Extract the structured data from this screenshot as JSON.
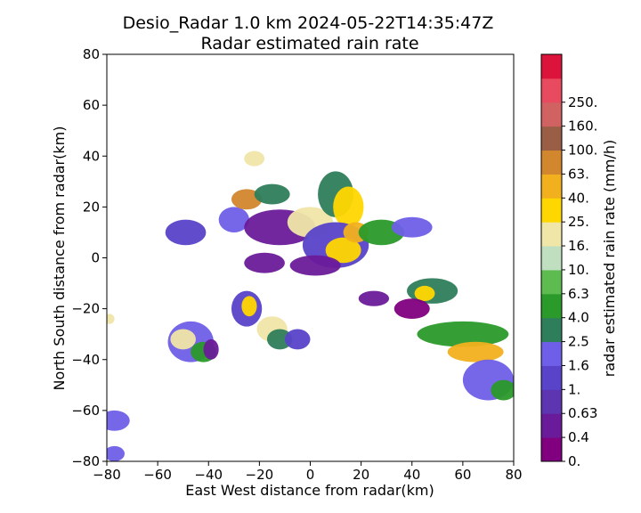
{
  "chart_data": {
    "type": "heatmap",
    "title_line1": "Desio_Radar 1.0 km 2024-05-22T14:35:47Z",
    "title_line2": "Radar estimated rain rate",
    "xlabel": "East West distance from radar(km)",
    "ylabel": "North South distance from radar(km)",
    "xlim": [
      -80,
      80
    ],
    "ylim": [
      -80,
      80
    ],
    "xticks": [
      "−80",
      "−60",
      "−40",
      "−20",
      "0",
      "20",
      "40",
      "60",
      "80"
    ],
    "yticks": [
      "−80",
      "−60",
      "−40",
      "−20",
      "0",
      "20",
      "40",
      "60",
      "80"
    ],
    "grid": false,
    "colorbar": {
      "label": "radar estimated rain rate (mm/h)",
      "tick_labels": [
        "0.",
        "0.4",
        "0.63",
        "1.",
        "1.6",
        "2.5",
        "4.0",
        "6.3",
        "10.",
        "16.",
        "25.",
        "40.",
        "63.",
        "100.",
        "160.",
        "250."
      ],
      "colors": [
        "#800080",
        "#6a1b9a",
        "#5e35b1",
        "#5943c9",
        "#6f5fe8",
        "#2e7d5b",
        "#2a9a2a",
        "#5dbb4f",
        "#c0dfc0",
        "#f0e6a8",
        "#ffd700",
        "#f2b01e",
        "#d2862e",
        "#9a5e46",
        "#d06262",
        "#e84a5f",
        "#dc143c"
      ]
    },
    "echo_regions": [
      {
        "x": -49,
        "y": 10,
        "rx": 8,
        "ry": 5,
        "level": 3
      },
      {
        "x": -30,
        "y": 15,
        "rx": 6,
        "ry": 5,
        "level": 4
      },
      {
        "x": -25,
        "y": 23,
        "rx": 6,
        "ry": 4,
        "level": 12
      },
      {
        "x": -22,
        "y": 39,
        "rx": 4,
        "ry": 3,
        "level": 9
      },
      {
        "x": -15,
        "y": 25,
        "rx": 7,
        "ry": 4,
        "level": 5
      },
      {
        "x": -12,
        "y": 12,
        "rx": 14,
        "ry": 7,
        "level": 1
      },
      {
        "x": 0,
        "y": 14,
        "rx": 9,
        "ry": 6,
        "level": 9
      },
      {
        "x": 10,
        "y": 25,
        "rx": 7,
        "ry": 9,
        "level": 5
      },
      {
        "x": 15,
        "y": 20,
        "rx": 6,
        "ry": 8,
        "level": 10
      },
      {
        "x": 10,
        "y": 5,
        "rx": 13,
        "ry": 9,
        "level": 3
      },
      {
        "x": 13,
        "y": 3,
        "rx": 7,
        "ry": 5,
        "level": 10
      },
      {
        "x": 18,
        "y": 10,
        "rx": 5,
        "ry": 4,
        "level": 11
      },
      {
        "x": 28,
        "y": 10,
        "rx": 9,
        "ry": 5,
        "level": 6
      },
      {
        "x": 40,
        "y": 12,
        "rx": 8,
        "ry": 4,
        "level": 4
      },
      {
        "x": 2,
        "y": -3,
        "rx": 10,
        "ry": 4,
        "level": 1
      },
      {
        "x": -18,
        "y": -2,
        "rx": 8,
        "ry": 4,
        "level": 1
      },
      {
        "x": -25,
        "y": -20,
        "rx": 6,
        "ry": 7,
        "level": 3
      },
      {
        "x": -24,
        "y": -19,
        "rx": 3,
        "ry": 4,
        "level": 10
      },
      {
        "x": -15,
        "y": -28,
        "rx": 6,
        "ry": 5,
        "level": 9
      },
      {
        "x": -12,
        "y": -32,
        "rx": 5,
        "ry": 4,
        "level": 5
      },
      {
        "x": -5,
        "y": -32,
        "rx": 5,
        "ry": 4,
        "level": 3
      },
      {
        "x": -47,
        "y": -33,
        "rx": 9,
        "ry": 8,
        "level": 4
      },
      {
        "x": -50,
        "y": -32,
        "rx": 5,
        "ry": 4,
        "level": 9
      },
      {
        "x": -42,
        "y": -37,
        "rx": 5,
        "ry": 4,
        "level": 6
      },
      {
        "x": -39,
        "y": -36,
        "rx": 3,
        "ry": 4,
        "level": 1
      },
      {
        "x": 48,
        "y": -13,
        "rx": 10,
        "ry": 5,
        "level": 5
      },
      {
        "x": 45,
        "y": -14,
        "rx": 4,
        "ry": 3,
        "level": 10
      },
      {
        "x": 60,
        "y": -30,
        "rx": 18,
        "ry": 5,
        "level": 6
      },
      {
        "x": 65,
        "y": -37,
        "rx": 11,
        "ry": 4,
        "level": 11
      },
      {
        "x": 70,
        "y": -48,
        "rx": 10,
        "ry": 8,
        "level": 4
      },
      {
        "x": 76,
        "y": -52,
        "rx": 5,
        "ry": 4,
        "level": 6
      },
      {
        "x": 40,
        "y": -20,
        "rx": 7,
        "ry": 4,
        "level": 0
      },
      {
        "x": 25,
        "y": -16,
        "rx": 6,
        "ry": 3,
        "level": 1
      },
      {
        "x": -77,
        "y": -64,
        "rx": 6,
        "ry": 4,
        "level": 4
      },
      {
        "x": -77,
        "y": -77,
        "rx": 4,
        "ry": 3,
        "level": 4
      },
      {
        "x": -79,
        "y": -24,
        "rx": 2,
        "ry": 2,
        "level": 9
      }
    ]
  }
}
